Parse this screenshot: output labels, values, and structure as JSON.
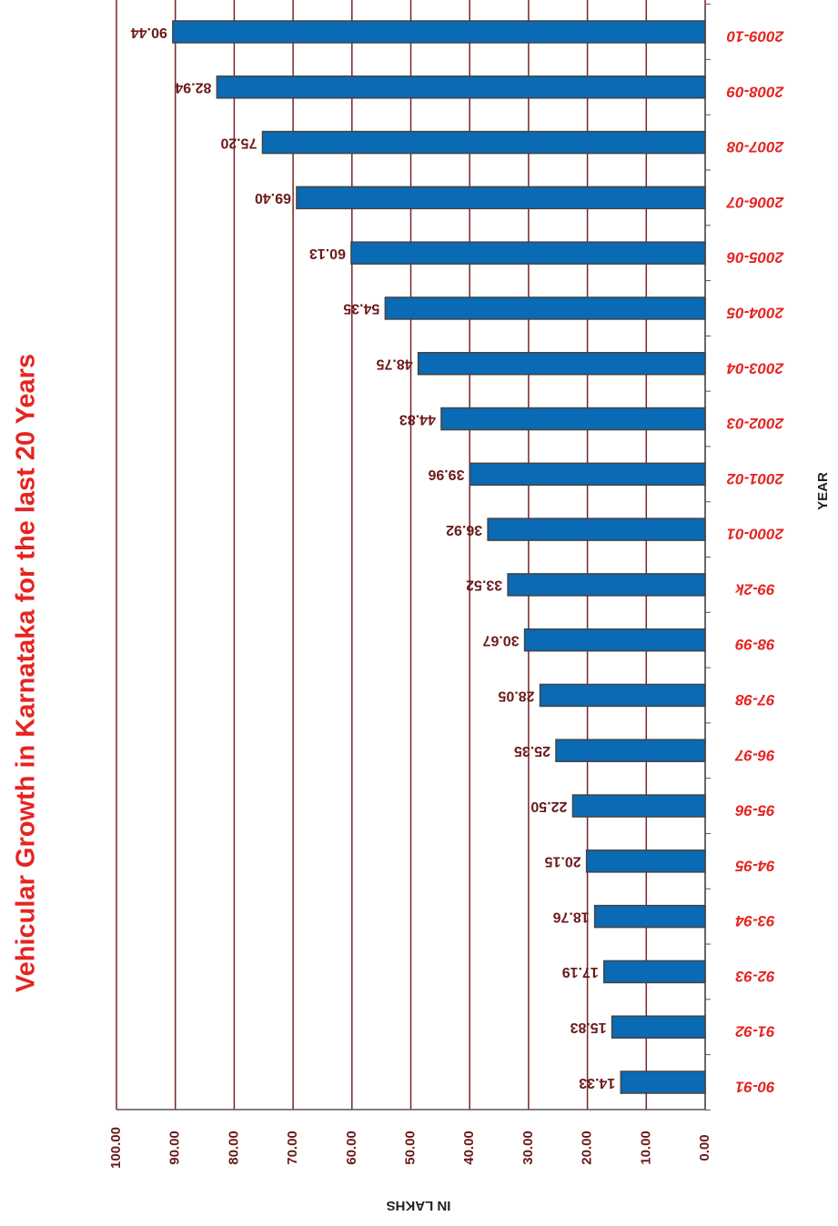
{
  "chart_data": {
    "type": "bar",
    "orientation": "horizontal",
    "title": "Vehicular Growth in Karnataka for the last 20 Years",
    "x_label": "IN LAKHS",
    "y_label": "YEAR",
    "categories": [
      "90-91",
      "91-92",
      "92-93",
      "93-94",
      "94-95",
      "95-96",
      "96-97",
      "97-98",
      "98-99",
      "99-2k",
      "2000-01",
      "2001-02",
      "2002-03",
      "2003-04",
      "2004-05",
      "2005-06",
      "2006-07",
      "2007-08",
      "2008-09",
      "2009-10"
    ],
    "values": [
      14.33,
      15.83,
      17.19,
      18.76,
      20.15,
      22.5,
      25.35,
      28.05,
      30.67,
      33.52,
      36.92,
      39.96,
      44.83,
      48.75,
      54.35,
      60.13,
      69.4,
      75.2,
      82.94,
      90.44
    ],
    "value_labels": [
      "14.33",
      "15.83",
      "17.19",
      "18.76",
      "20.15",
      "22.50",
      "25.35",
      "28.05",
      "30.67",
      "33.52",
      "36.92",
      "39.96",
      "44.83",
      "48.75",
      "54.35",
      "60.13",
      "69.40",
      "75.20",
      "82.94",
      "90.44"
    ],
    "color": "#0a6ab4",
    "xlim": [
      0,
      100
    ],
    "xticks": [
      {
        "value": 0,
        "label": "0.00"
      },
      {
        "value": 10,
        "label": "10.00"
      },
      {
        "value": 20,
        "label": "20.00"
      },
      {
        "value": 30,
        "label": "30.00"
      },
      {
        "value": 40,
        "label": "40.00"
      },
      {
        "value": 50,
        "label": "50.00"
      },
      {
        "value": 60,
        "label": "60.00"
      },
      {
        "value": 70,
        "label": "70.00"
      },
      {
        "value": 80,
        "label": "80.00"
      },
      {
        "value": 90,
        "label": "90.00"
      },
      {
        "value": 100,
        "label": "100.00"
      }
    ],
    "grid": true
  }
}
